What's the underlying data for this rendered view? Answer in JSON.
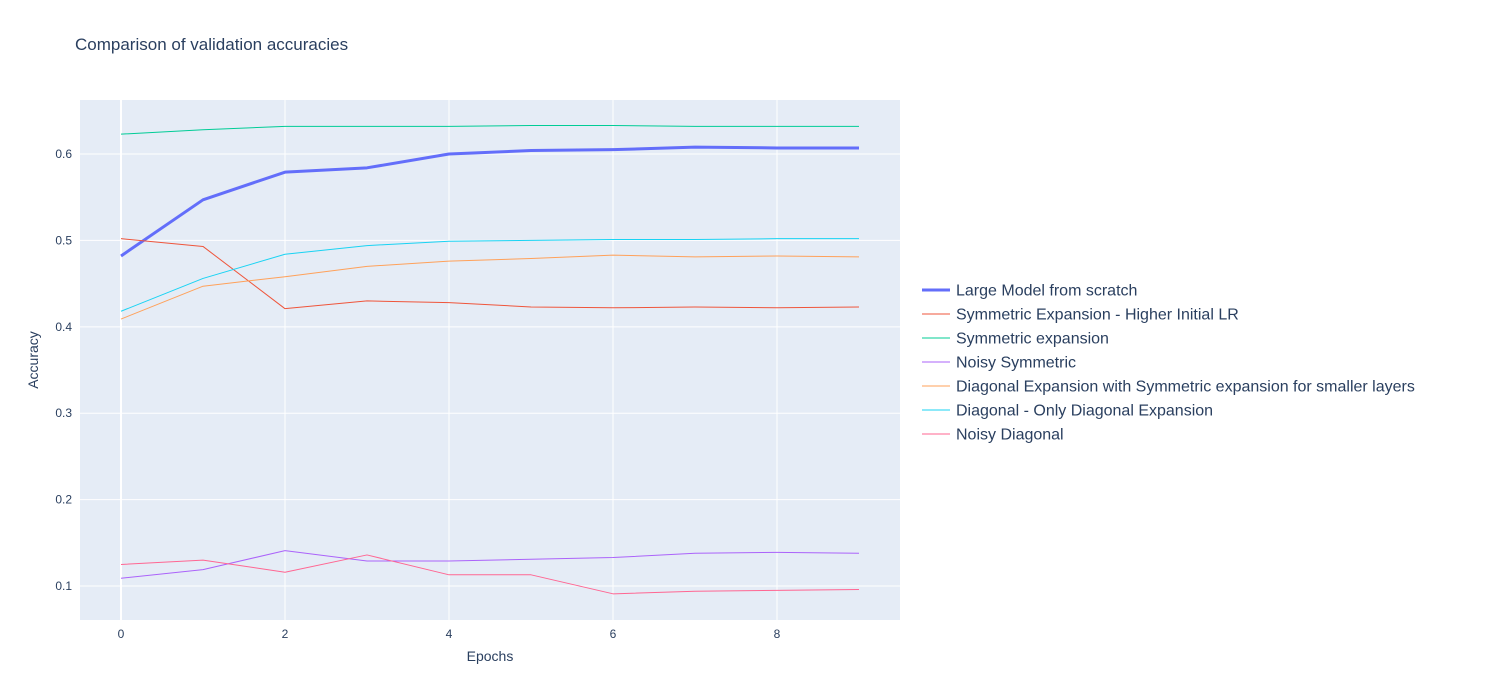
{
  "chart_data": {
    "type": "line",
    "title": "Comparison of validation accuracies",
    "xlabel": "Epochs",
    "ylabel": "Accuracy",
    "xlim": [
      -0.5,
      9.5
    ],
    "ylim": [
      0.0607,
      0.6625
    ],
    "xticks": [
      0,
      2,
      4,
      6,
      8
    ],
    "yticks": [
      0.1,
      0.2,
      0.3,
      0.4,
      0.5,
      0.6
    ],
    "grid": true,
    "legend_position": "right",
    "x": [
      0,
      1,
      2,
      3,
      4,
      5,
      6,
      7,
      8,
      9
    ],
    "series": [
      {
        "name": "Large Model from scratch",
        "color": "#636efa",
        "width": 3,
        "values": [
          0.482,
          0.547,
          0.579,
          0.584,
          0.6,
          0.604,
          0.605,
          0.608,
          0.607,
          0.607
        ]
      },
      {
        "name": "Symmetric Expansion - Higher Initial LR",
        "color": "#EF553B",
        "width": 1,
        "values": [
          0.502,
          0.493,
          0.421,
          0.43,
          0.428,
          0.423,
          0.422,
          0.423,
          0.422,
          0.423
        ]
      },
      {
        "name": "Symmetric expansion",
        "color": "#00cc96",
        "width": 1,
        "values": [
          0.623,
          0.628,
          0.632,
          0.632,
          0.632,
          0.633,
          0.633,
          0.632,
          0.632,
          0.632
        ]
      },
      {
        "name": "Noisy Symmetric",
        "color": "#ab63fa",
        "width": 1,
        "values": [
          0.109,
          0.119,
          0.141,
          0.129,
          0.129,
          0.131,
          0.133,
          0.138,
          0.139,
          0.138
        ]
      },
      {
        "name": "Diagonal Expansion with Symmetric expansion for smaller layers",
        "color": "#FFA15A",
        "width": 1,
        "values": [
          0.409,
          0.447,
          0.458,
          0.47,
          0.476,
          0.479,
          0.483,
          0.481,
          0.482,
          0.481
        ]
      },
      {
        "name": "Diagonal - Only Diagonal Expansion",
        "color": "#19d3f3",
        "width": 1,
        "values": [
          0.418,
          0.456,
          0.484,
          0.494,
          0.499,
          0.5,
          0.501,
          0.501,
          0.502,
          0.502
        ]
      },
      {
        "name": "Noisy Diagonal",
        "color": "#FF6692",
        "width": 1,
        "values": [
          0.125,
          0.13,
          0.116,
          0.136,
          0.113,
          0.113,
          0.091,
          0.094,
          0.095,
          0.096
        ]
      }
    ]
  }
}
